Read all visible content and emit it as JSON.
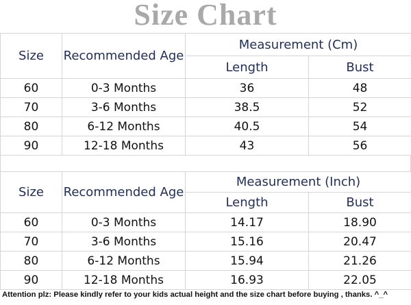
{
  "header": {
    "title": "Size Chart"
  },
  "tables": [
    {
      "columns": [
        "Size",
        "Recommended Age"
      ],
      "group_header": "Measurement (Cm)",
      "subcolumns": [
        "Length",
        "Bust"
      ],
      "rows": [
        [
          "60",
          "0-3 Months",
          "36",
          "48"
        ],
        [
          "70",
          "3-6 Months",
          "38.5",
          "52"
        ],
        [
          "80",
          "6-12 Months",
          "40.5",
          "54"
        ],
        [
          "90",
          "12-18 Months",
          "43",
          "56"
        ]
      ]
    },
    {
      "columns": [
        "Size",
        "Recommended Age"
      ],
      "group_header": "Measurement (Inch)",
      "subcolumns": [
        "Length",
        "Bust"
      ],
      "rows": [
        [
          "60",
          "0-3 Months",
          "14.17",
          "18.90"
        ],
        [
          "70",
          "3-6 Months",
          "15.16",
          "20.47"
        ],
        [
          "80",
          "6-12 Months",
          "15.94",
          "21.26"
        ],
        [
          "90",
          "12-18 Months",
          "16.93",
          "22.05"
        ]
      ]
    }
  ],
  "footer": "Attention plz: Please kindly refer to your kids actual height and the size chart before buying , thanks. ^_^"
}
